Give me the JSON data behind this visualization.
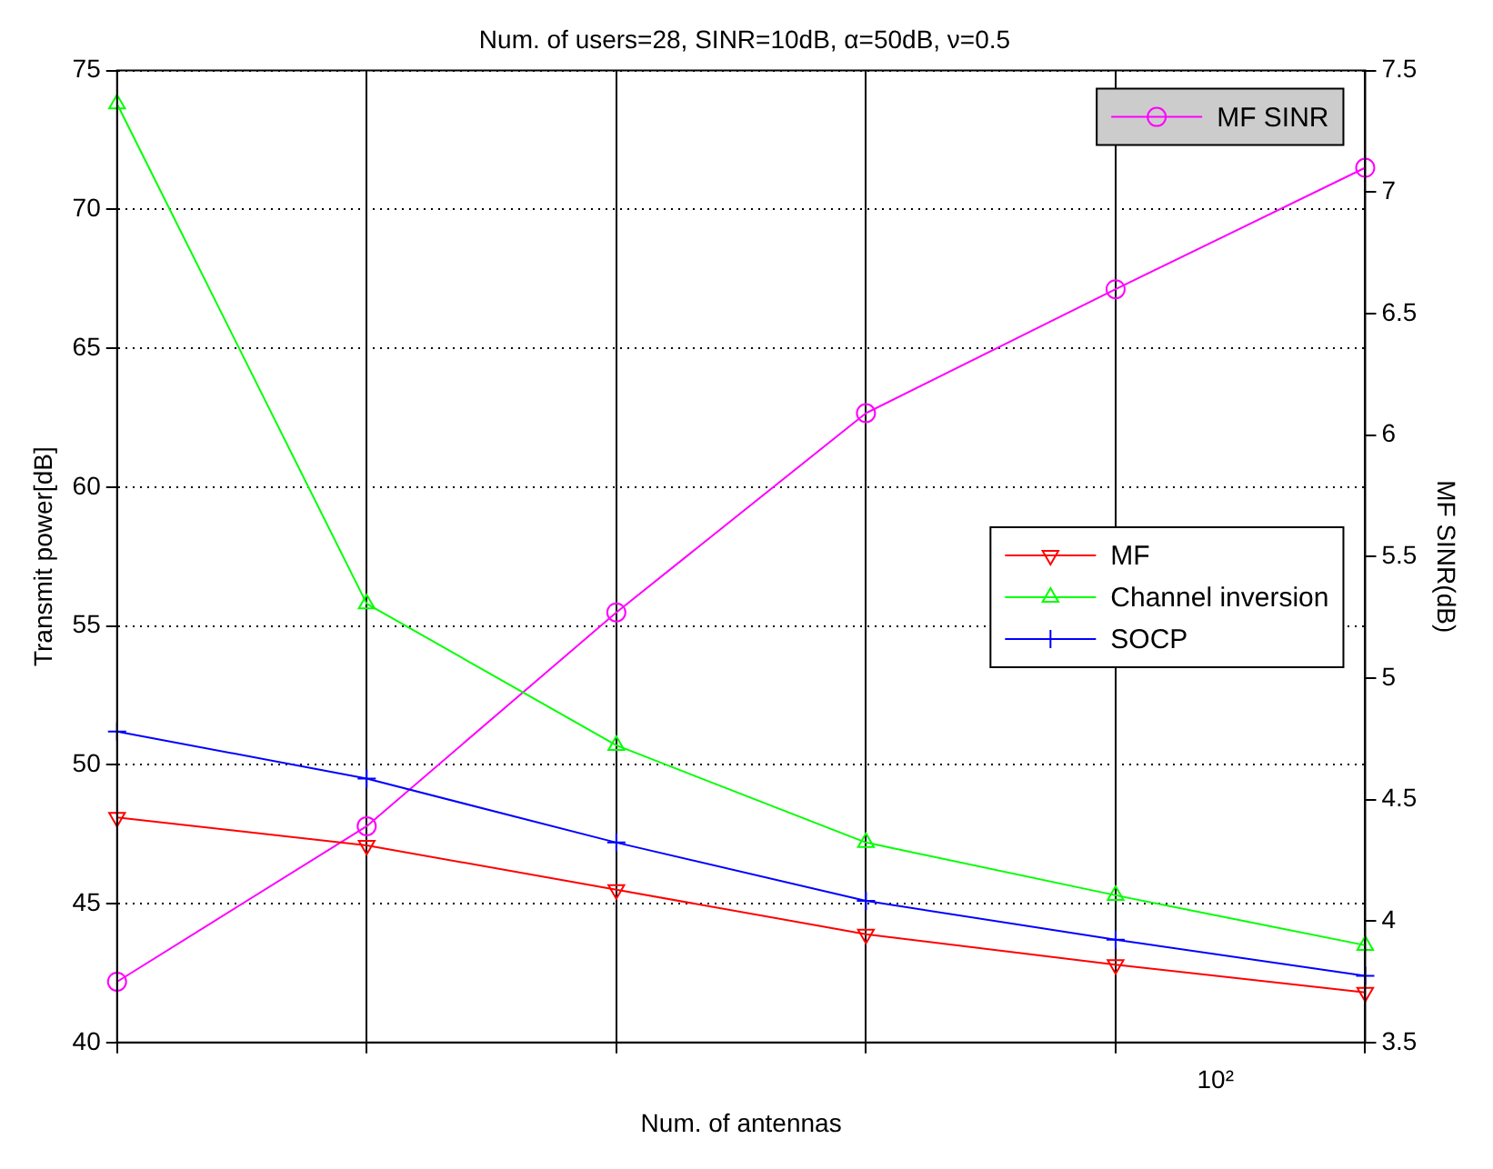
{
  "chart_data": {
    "type": "line",
    "title": "Num. of users=28, SINR=10dB, α=50dB, ν=0.5",
    "xlabel": "Num. of antennas",
    "ylabel": "Transmit power[dB]",
    "y2label": "MF SINR(dB)",
    "annotations": [
      "10²"
    ],
    "categories": [
      null,
      null,
      null,
      null,
      null,
      null
    ],
    "ylim": [
      40,
      75
    ],
    "yticks": [
      40,
      45,
      50,
      55,
      60,
      65,
      70,
      75
    ],
    "y2lim": [
      3.5,
      7.5
    ],
    "y2ticks": [
      3.5,
      4,
      4.5,
      5,
      5.5,
      6,
      6.5,
      7,
      7.5
    ],
    "grid": true,
    "legend": "right",
    "line_style": "solid",
    "series": [
      {
        "name": "MF",
        "color": "#ff0000",
        "marker": "triangle_down",
        "values": [
          48.1,
          47.1,
          45.5,
          43.9,
          42.8,
          41.8
        ]
      },
      {
        "name": "Channel inversion",
        "color": "#00ff00",
        "marker": "triangle",
        "values": [
          73.8,
          55.8,
          50.7,
          47.2,
          45.3,
          43.5
        ]
      },
      {
        "name": "SOCP",
        "color": "#0000ff",
        "marker": "cross",
        "values": [
          51.2,
          49.5,
          47.2,
          45.1,
          43.7,
          42.4
        ]
      },
      {
        "name": "MF SINR",
        "color": "#ff00ff",
        "marker": "circle",
        "axis": "y2",
        "values": [
          3.75,
          4.39,
          5.27,
          6.09,
          6.6,
          7.1
        ]
      }
    ]
  }
}
